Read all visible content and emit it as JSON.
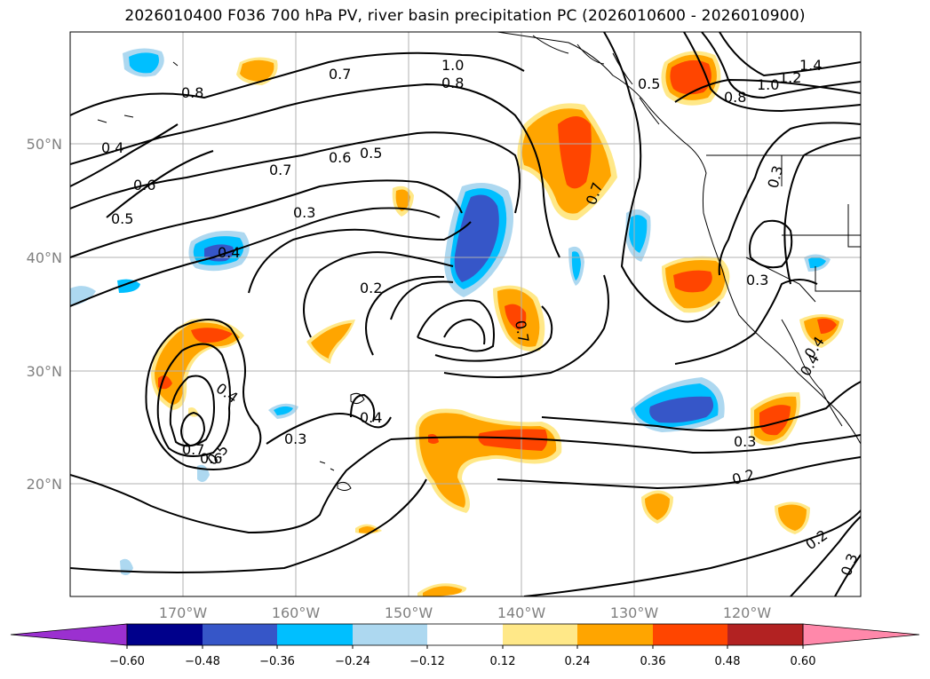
{
  "title": "2026010400 F036 700 hPa PV, river basin precipitation PC (2026010600 - 2026010900)",
  "lat_labels": [
    "50°N",
    "40°N",
    "30°N",
    "20°N"
  ],
  "lon_labels": [
    "170°W",
    "160°W",
    "150°W",
    "140°W",
    "130°W",
    "120°W"
  ],
  "contour_labels": [
    "1.0",
    "0.8",
    "1.4",
    "1.2",
    "1.0",
    "0.8",
    "0.7",
    "0.5",
    "0.8",
    "0.4",
    "0.6",
    "0.5",
    "0.7",
    "0.6",
    "0.5",
    "0.3",
    "0.4",
    "0.2",
    "0.7",
    "0.7",
    "0.3",
    "0.3",
    "0.4",
    "0.4",
    "0.3",
    "0.7",
    "0.6",
    "0.5",
    "0.4",
    "0.3",
    "0.2",
    "0.2",
    "0.3",
    "0.4"
  ],
  "colorbar": {
    "ticks": [
      "−0.60",
      "−0.48",
      "−0.36",
      "−0.24",
      "−0.12",
      "0.12",
      "0.24",
      "0.36",
      "0.48",
      "0.60"
    ],
    "colors": [
      "#9b30d0",
      "#00008b",
      "#3656c8",
      "#00bfff",
      "#add8f0",
      "#ffffff",
      "#ffe888",
      "#ffa500",
      "#ff4500",
      "#b22222",
      "#ff88aa"
    ]
  },
  "shading_colors": {
    "neg_light": "#add8f0",
    "neg_mid": "#00bfff",
    "neg_dark": "#3656c8",
    "pos_light": "#ffe888",
    "pos_mid": "#ffa500",
    "pos_dark": "#ff4500"
  }
}
